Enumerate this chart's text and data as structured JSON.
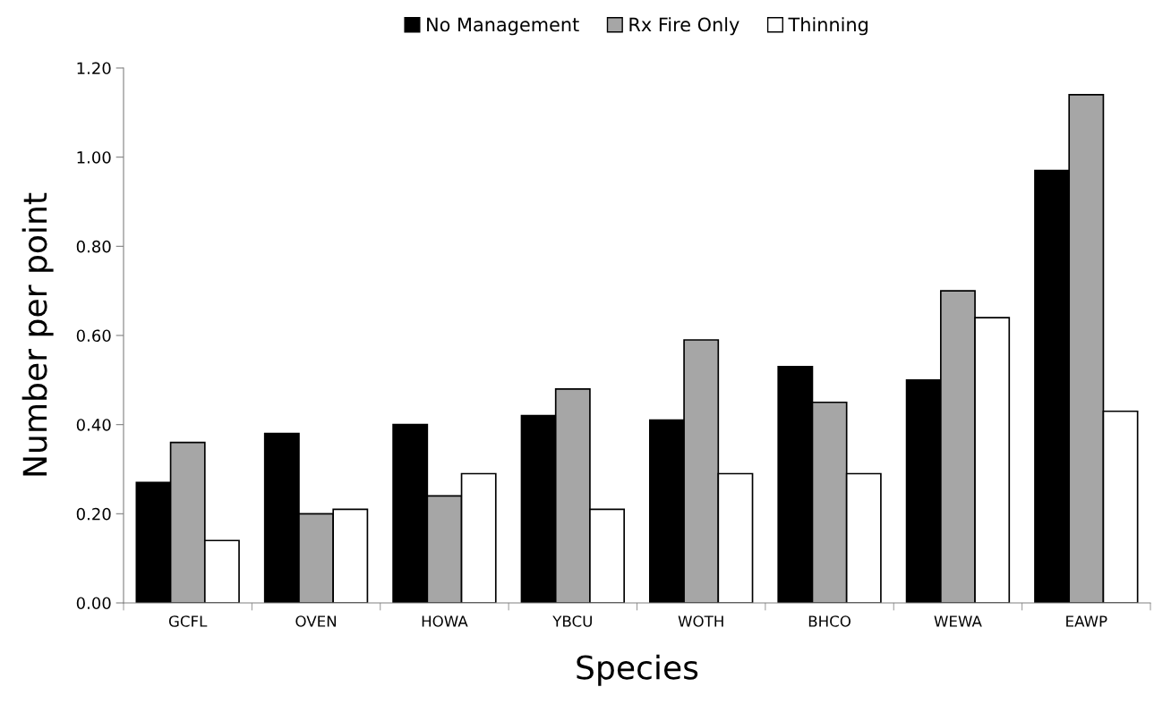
{
  "chart_data": {
    "type": "bar",
    "xlabel": "Species",
    "ylabel": "Number per point",
    "categories": [
      "GCFL",
      "OVEN",
      "HOWA",
      "YBCU",
      "WOTH",
      "BHCO",
      "WEWA",
      "EAWP"
    ],
    "series": [
      {
        "name": "No Management",
        "color": "#000000",
        "values": [
          0.27,
          0.38,
          0.4,
          0.42,
          0.41,
          0.53,
          0.5,
          0.97
        ]
      },
      {
        "name": "Rx Fire Only",
        "color": "#a6a6a6",
        "values": [
          0.36,
          0.2,
          0.24,
          0.48,
          0.59,
          0.45,
          0.7,
          1.14
        ]
      },
      {
        "name": "Thinning",
        "color": "#ffffff",
        "values": [
          0.14,
          0.21,
          0.29,
          0.21,
          0.29,
          0.29,
          0.64,
          0.43
        ]
      }
    ],
    "ylim": [
      0,
      1.2
    ],
    "yticks": [
      {
        "value": 0,
        "label": "0.00"
      },
      {
        "value": 0.2,
        "label": "0.20"
      },
      {
        "value": 0.4,
        "label": "0.40"
      },
      {
        "value": 0.6,
        "label": "0.60"
      },
      {
        "value": 0.8,
        "label": "0.80"
      },
      {
        "value": 1.0,
        "label": "1.00"
      },
      {
        "value": 1.2,
        "label": "1.20"
      }
    ],
    "grid": false,
    "legend": "top"
  }
}
